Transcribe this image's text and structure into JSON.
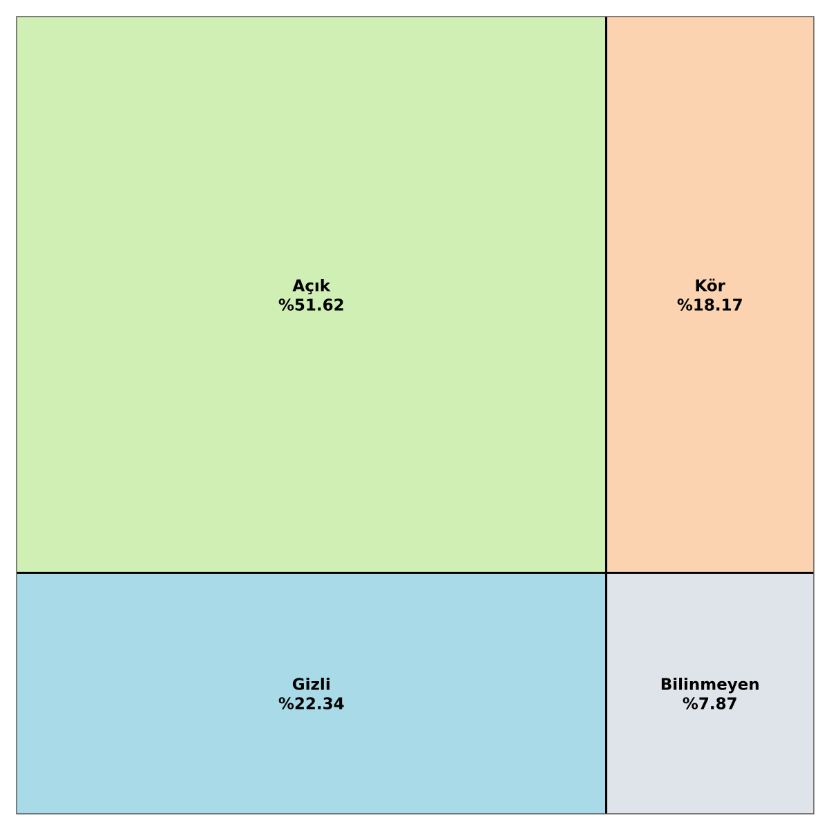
{
  "chart_data": {
    "type": "treemap",
    "cells": [
      {
        "label": "Açık",
        "value_text": "%51.62",
        "value": 51.62,
        "color": "#cfefb5"
      },
      {
        "label": "Kör",
        "value_text": "%18.17",
        "value": 18.17,
        "color": "#fbd3b1"
      },
      {
        "label": "Gizli",
        "value_text": "%22.34",
        "value": 22.34,
        "color": "#a8dbe7"
      },
      {
        "label": "Bilinmeyen",
        "value_text": "%7.87",
        "value": 7.87,
        "color": "#dfe3ea"
      }
    ],
    "divider_color": "#000000",
    "frame_color": "#555555"
  }
}
